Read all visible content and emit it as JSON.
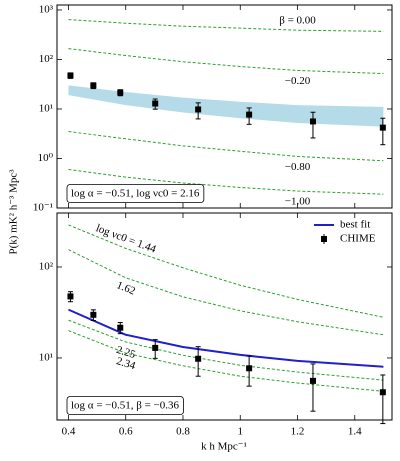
{
  "figure": {
    "xlabel": "k  h Mpc⁻¹",
    "ylabel": "P(k)  mK² h⁻³ Mpc³"
  },
  "chart_data": [
    {
      "type": "line",
      "log_y": true,
      "xtick_labels": false,
      "xlim": [
        0.36,
        1.53
      ],
      "ylim": [
        0.1,
        1260
      ],
      "xticks": [
        0.4,
        0.6,
        0.8,
        1.0,
        1.2,
        1.4
      ],
      "yticks": [
        {
          "value": 0.1,
          "label": "10⁻¹"
        },
        {
          "value": 1,
          "label": "10⁰"
        },
        {
          "value": 10,
          "label": "10¹"
        },
        {
          "value": 100,
          "label": "10²"
        },
        {
          "value": 1000,
          "label": "10³"
        }
      ],
      "annotation": "log α = −0.51, log νc0 = 2.16",
      "x": [
        0.4,
        0.6,
        0.8,
        1.0,
        1.2,
        1.5
      ],
      "band": {
        "color": "#a8d5e5",
        "upper": [
          30,
          22,
          17,
          14,
          12,
          11
        ],
        "lower": [
          19,
          12,
          8.5,
          6.5,
          5.2,
          4.4
        ]
      },
      "series": [
        {
          "label": "β = 0.00",
          "color": "#2ca02c",
          "values": [
            640,
            540,
            470,
            430,
            390,
            370
          ]
        },
        {
          "label": "−0.20",
          "color": "#2ca02c",
          "values": [
            166,
            120,
            90,
            72,
            60,
            52
          ]
        },
        {
          "label": "−0.80",
          "color": "#2ca02c",
          "values": [
            3.5,
            2.5,
            1.8,
            1.4,
            1.1,
            0.9
          ]
        },
        {
          "label": "−1.00",
          "color": "#2ca02c",
          "values": [
            0.6,
            0.42,
            0.32,
            0.26,
            0.22,
            0.19
          ]
        }
      ],
      "points": {
        "color": "#000000",
        "x": [
          0.407,
          0.487,
          0.581,
          0.703,
          0.853,
          1.031,
          1.254,
          1.498
        ],
        "values": [
          47.5,
          29.8,
          21.5,
          12.9,
          9.8,
          7.7,
          5.6,
          4.2
        ],
        "errors": [
          6,
          4,
          3,
          3,
          3.5,
          2.8,
          3,
          2.3
        ]
      }
    },
    {
      "type": "line",
      "log_y": true,
      "xtick_labels": true,
      "legend": "upper right",
      "xlim": [
        0.36,
        1.53
      ],
      "ylim": [
        2.08,
        392
      ],
      "xticks": [
        0.4,
        0.6,
        0.8,
        1.0,
        1.2,
        1.4
      ],
      "yticks": [
        {
          "value": 10,
          "label": "10¹"
        },
        {
          "value": 100,
          "label": "10²"
        }
      ],
      "annotation": "log α = −0.51, β = −0.36",
      "x": [
        0.4,
        0.6,
        0.8,
        1.0,
        1.2,
        1.5
      ],
      "series": [
        {
          "label": "log νc0 = 1.44",
          "color": "#2ca02c",
          "values": [
            290,
            160,
            98,
            63,
            44,
            28
          ]
        },
        {
          "label": "1.62",
          "color": "#2ca02c",
          "values": [
            155,
            76,
            47,
            33,
            25,
            18
          ]
        },
        {
          "label": "2.25",
          "color": "#2ca02c",
          "values": [
            26,
            15,
            10.7,
            8.3,
            7.0,
            5.7
          ]
        },
        {
          "label": "2.34",
          "color": "#2ca02c",
          "values": [
            20,
            11.3,
            8.2,
            6.3,
            5.3,
            4.3
          ]
        },
        {
          "name": "best fit",
          "color": "#1f1fd0",
          "values": [
            34,
            18,
            13.2,
            10.8,
            9.3,
            8.0
          ]
        }
      ],
      "points": {
        "name": "CHIME",
        "color": "#000000",
        "x": [
          0.407,
          0.487,
          0.581,
          0.703,
          0.853,
          1.031,
          1.254,
          1.498
        ],
        "values": [
          47.5,
          29.8,
          21.5,
          12.9,
          9.8,
          7.7,
          5.6,
          4.2
        ],
        "errors": [
          6,
          4,
          3,
          3,
          3.5,
          2.8,
          3,
          2.3
        ]
      }
    }
  ]
}
